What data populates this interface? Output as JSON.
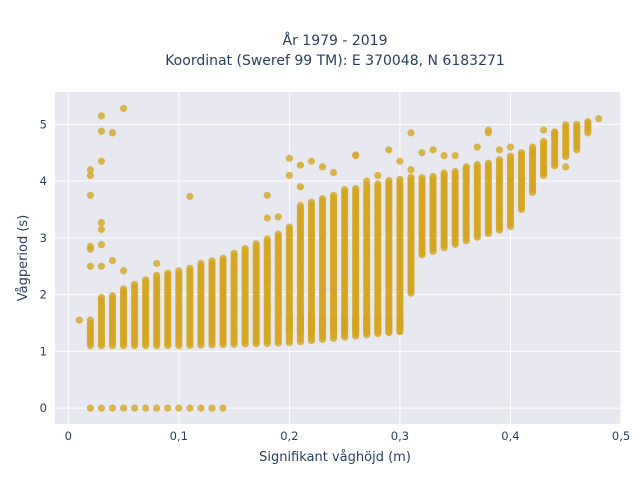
{
  "chart_data": {
    "type": "scatter",
    "title_lines": [
      "År 1979 - 2019",
      "Koordinat (Sweref 99 TM): E 370048, N 6183271"
    ],
    "xlabel": "Signifikant våghöjd (m)",
    "ylabel": "Vågperiod (s)",
    "xlim": [
      -0.012,
      0.5
    ],
    "ylim": [
      -0.28,
      5.57
    ],
    "x_ticks": [
      0,
      0.1,
      0.2,
      0.3,
      0.4,
      0.5
    ],
    "x_tick_labels": [
      "0",
      "0,1",
      "0,2",
      "0,3",
      "0,4",
      "0,5"
    ],
    "y_ticks": [
      0,
      1,
      2,
      3,
      4,
      5
    ],
    "y_tick_labels": [
      "0",
      "1",
      "2",
      "3",
      "4",
      "5"
    ],
    "grid": true,
    "legend": "none",
    "colors": {
      "marker": "#d4a520",
      "plot_bg": "#e8e8f0",
      "grid": "#ffffff",
      "text": "#2a3f5f"
    },
    "marker_opacity": 0.78,
    "column_step": 0.01,
    "x_min_dense": 0.02,
    "x_max_dense": 0.48,
    "lower_band_breakpoints": [
      [
        0.02,
        1.1
      ],
      [
        0.1,
        1.1
      ],
      [
        0.2,
        1.15
      ],
      [
        0.3,
        1.35
      ],
      [
        0.32,
        2.7
      ],
      [
        0.4,
        3.2
      ],
      [
        0.43,
        4.1
      ],
      [
        0.46,
        4.6
      ],
      [
        0.48,
        5.1
      ]
    ],
    "upper_band_breakpoints": [
      [
        0.02,
        1.5
      ],
      [
        0.03,
        1.9
      ],
      [
        0.05,
        2.1
      ],
      [
        0.08,
        2.35
      ],
      [
        0.1,
        2.45
      ],
      [
        0.14,
        2.65
      ],
      [
        0.17,
        2.9
      ],
      [
        0.2,
        3.2
      ],
      [
        0.21,
        3.6
      ],
      [
        0.25,
        3.85
      ],
      [
        0.3,
        4.05
      ],
      [
        0.33,
        4.1
      ],
      [
        0.38,
        4.35
      ],
      [
        0.42,
        4.6
      ],
      [
        0.45,
        5.0
      ],
      [
        0.48,
        5.1
      ]
    ],
    "secondary_band": {
      "x_range": [
        0.2,
        0.3
      ],
      "y_range": [
        1.35,
        1.6
      ]
    },
    "zero_row": {
      "x_range": [
        0.02,
        0.14
      ],
      "y": 0
    },
    "isolated_points": [
      [
        0.01,
        1.55
      ],
      [
        0.02,
        1.55
      ],
      [
        0.02,
        4.2
      ],
      [
        0.02,
        4.1
      ],
      [
        0.02,
        3.75
      ],
      [
        0.02,
        2.85
      ],
      [
        0.02,
        2.8
      ],
      [
        0.02,
        2.5
      ],
      [
        0.03,
        5.15
      ],
      [
        0.03,
        4.88
      ],
      [
        0.03,
        4.35
      ],
      [
        0.03,
        3.27
      ],
      [
        0.03,
        3.15
      ],
      [
        0.03,
        2.88
      ],
      [
        0.03,
        2.5
      ],
      [
        0.03,
        1.95
      ],
      [
        0.04,
        4.85
      ],
      [
        0.04,
        2.6
      ],
      [
        0.05,
        5.28
      ],
      [
        0.05,
        2.42
      ],
      [
        0.08,
        2.55
      ],
      [
        0.11,
        3.73
      ],
      [
        0.18,
        3.75
      ],
      [
        0.18,
        3.35
      ],
      [
        0.18,
        2.55
      ],
      [
        0.18,
        2.25
      ],
      [
        0.18,
        1.75
      ],
      [
        0.19,
        3.37
      ],
      [
        0.2,
        4.4
      ],
      [
        0.2,
        4.1
      ],
      [
        0.21,
        4.28
      ],
      [
        0.21,
        3.9
      ],
      [
        0.22,
        4.35
      ],
      [
        0.23,
        4.25
      ],
      [
        0.24,
        4.15
      ],
      [
        0.26,
        4.45
      ],
      [
        0.26,
        4.46
      ],
      [
        0.27,
        4.0
      ],
      [
        0.28,
        4.1
      ],
      [
        0.29,
        4.55
      ],
      [
        0.29,
        2.2
      ],
      [
        0.29,
        2.45
      ],
      [
        0.3,
        4.35
      ],
      [
        0.3,
        2.2
      ],
      [
        0.3,
        2.1
      ],
      [
        0.31,
        4.85
      ],
      [
        0.31,
        4.2
      ],
      [
        0.32,
        4.5
      ],
      [
        0.33,
        4.55
      ],
      [
        0.34,
        4.45
      ],
      [
        0.35,
        4.45
      ],
      [
        0.36,
        4.25
      ],
      [
        0.37,
        4.6
      ],
      [
        0.38,
        4.9
      ],
      [
        0.38,
        4.85
      ],
      [
        0.39,
        4.55
      ],
      [
        0.4,
        4.6
      ],
      [
        0.42,
        4.5
      ],
      [
        0.43,
        4.9
      ],
      [
        0.44,
        4.85
      ],
      [
        0.44,
        4.75
      ],
      [
        0.45,
        4.25
      ],
      [
        0.46,
        4.55
      ]
    ]
  }
}
